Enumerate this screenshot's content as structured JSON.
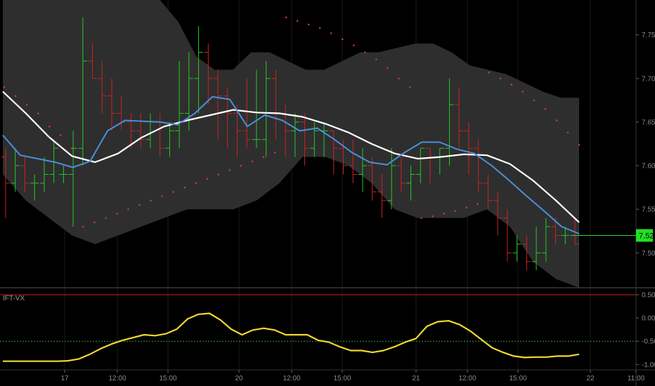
{
  "chart_data": [
    {
      "type": "line",
      "title": "",
      "price_scale": {
        "ylim": [
          7.46,
          7.79
        ],
        "ticks": [
          "7.75",
          "7.70",
          "7.65",
          "7.60",
          "7.55",
          "7.50"
        ]
      },
      "last_price": {
        "label": "7.52",
        "value": 7.52,
        "color": "#22e022"
      },
      "colors": {
        "up": "#22cc22",
        "down": "#cc2222",
        "band": "#2e2e2e",
        "fast_ma": "#4a90d9",
        "slow_ma": "#ffffff",
        "psar": "#d63a3a"
      },
      "price_bars": [
        [
          7.61,
          7.62,
          7.54,
          7.58
        ],
        [
          7.58,
          7.62,
          7.57,
          7.6
        ],
        [
          7.6,
          7.61,
          7.57,
          7.58
        ],
        [
          7.58,
          7.59,
          7.56,
          7.58
        ],
        [
          7.58,
          7.61,
          7.57,
          7.59
        ],
        [
          7.59,
          7.63,
          7.58,
          7.62
        ],
        [
          7.59,
          7.6,
          7.58,
          7.59
        ],
        [
          7.59,
          7.64,
          7.53,
          7.62
        ],
        [
          7.62,
          7.77,
          7.6,
          7.72
        ],
        [
          7.72,
          7.74,
          7.7,
          7.7
        ],
        [
          7.7,
          7.72,
          7.66,
          7.68
        ],
        [
          7.68,
          7.7,
          7.64,
          7.66
        ],
        [
          7.66,
          7.68,
          7.64,
          7.65
        ],
        [
          7.65,
          7.66,
          7.62,
          7.64
        ],
        [
          7.64,
          7.66,
          7.62,
          7.63
        ],
        [
          7.63,
          7.66,
          7.62,
          7.65
        ],
        [
          7.65,
          7.66,
          7.61,
          7.62
        ],
        [
          7.62,
          7.65,
          7.61,
          7.64
        ],
        [
          7.64,
          7.72,
          7.62,
          7.66
        ],
        [
          7.66,
          7.73,
          7.64,
          7.7
        ],
        [
          7.7,
          7.76,
          7.66,
          7.73
        ],
        [
          7.73,
          7.74,
          7.67,
          7.7
        ],
        [
          7.7,
          7.71,
          7.63,
          7.68
        ],
        [
          7.68,
          7.69,
          7.62,
          7.66
        ],
        [
          7.66,
          7.67,
          7.61,
          7.64
        ],
        [
          7.64,
          7.7,
          7.62,
          7.63
        ],
        [
          7.63,
          7.71,
          7.62,
          7.63
        ],
        [
          7.63,
          7.72,
          7.61,
          7.7
        ],
        [
          7.7,
          7.71,
          7.63,
          7.66
        ],
        [
          7.66,
          7.67,
          7.61,
          7.64
        ],
        [
          7.64,
          7.66,
          7.61,
          7.65
        ],
        [
          7.65,
          7.66,
          7.6,
          7.62
        ],
        [
          7.62,
          7.65,
          7.61,
          7.64
        ],
        [
          7.64,
          7.65,
          7.61,
          7.64
        ],
        [
          7.64,
          7.64,
          7.59,
          7.62
        ],
        [
          7.62,
          7.63,
          7.59,
          7.6
        ],
        [
          7.6,
          7.63,
          7.58,
          7.59
        ],
        [
          7.59,
          7.62,
          7.57,
          7.6
        ],
        [
          7.6,
          7.61,
          7.56,
          7.57
        ],
        [
          7.57,
          7.59,
          7.54,
          7.56
        ],
        [
          7.56,
          7.62,
          7.55,
          7.6
        ],
        [
          7.6,
          7.61,
          7.57,
          7.58
        ],
        [
          7.58,
          7.6,
          7.56,
          7.59
        ],
        [
          7.59,
          7.62,
          7.58,
          7.62
        ],
        [
          7.62,
          7.62,
          7.58,
          7.61
        ],
        [
          7.61,
          7.62,
          7.59,
          7.62
        ],
        [
          7.62,
          7.7,
          7.6,
          7.67
        ],
        [
          7.67,
          7.69,
          7.62,
          7.64
        ],
        [
          7.64,
          7.65,
          7.59,
          7.62
        ],
        [
          7.62,
          7.63,
          7.57,
          7.58
        ],
        [
          7.58,
          7.59,
          7.55,
          7.56
        ],
        [
          7.56,
          7.57,
          7.52,
          7.54
        ],
        [
          7.54,
          7.55,
          7.49,
          7.5
        ],
        [
          7.5,
          7.52,
          7.49,
          7.51
        ],
        [
          7.51,
          7.52,
          7.48,
          7.49
        ],
        [
          7.49,
          7.53,
          7.48,
          7.5
        ],
        [
          7.5,
          7.54,
          7.49,
          7.53
        ],
        [
          7.53,
          7.54,
          7.51,
          7.52
        ],
        [
          7.52,
          7.53,
          7.51,
          7.52
        ],
        [
          7.52,
          7.54,
          7.51,
          7.51
        ]
      ],
      "fast_ma": [
        7.635,
        7.612,
        7.608,
        7.604,
        7.598,
        7.605,
        7.64,
        7.652,
        7.651,
        7.65,
        7.647,
        7.66,
        7.679,
        7.676,
        7.645,
        7.658,
        7.652,
        7.64,
        7.643,
        7.63,
        7.615,
        7.604,
        7.601,
        7.615,
        7.627,
        7.627,
        7.619,
        7.614,
        7.6,
        7.583,
        7.565,
        7.548,
        7.53,
        7.522
      ],
      "slow_ma": [
        7.685,
        7.66,
        7.633,
        7.611,
        7.604,
        7.614,
        7.632,
        7.645,
        7.652,
        7.658,
        7.664,
        7.661,
        7.66,
        7.656,
        7.648,
        7.638,
        7.625,
        7.614,
        7.608,
        7.61,
        7.613,
        7.612,
        7.602,
        7.583,
        7.56,
        7.535
      ],
      "band_upper": [
        7.79,
        7.79,
        7.79,
        7.79,
        7.79,
        7.765,
        7.725,
        7.71,
        7.71,
        7.73,
        7.73,
        7.72,
        7.71,
        7.71,
        7.72,
        7.73,
        7.73,
        7.735,
        7.74,
        7.74,
        7.73,
        7.715,
        7.71,
        7.705,
        7.695,
        7.685,
        7.678,
        7.678
      ],
      "band_lower": [
        7.59,
        7.56,
        7.54,
        7.52,
        7.51,
        7.52,
        7.53,
        7.54,
        7.55,
        7.55,
        7.55,
        7.56,
        7.58,
        7.61,
        7.61,
        7.6,
        7.58,
        7.55,
        7.54,
        7.54,
        7.54,
        7.55,
        7.53,
        7.49,
        7.47,
        7.46
      ],
      "psar": [
        7.69,
        7.68,
        7.67,
        7.66,
        7.645,
        7.635,
        7.62,
        7.53,
        7.535,
        7.54,
        7.545,
        7.55,
        7.555,
        7.56,
        7.565,
        7.57,
        7.575,
        7.58,
        7.585,
        7.59,
        7.595,
        7.6,
        7.605,
        7.61,
        7.615,
        7.77,
        7.766,
        7.762,
        7.758,
        7.752,
        7.745,
        7.738,
        7.73,
        7.722,
        7.712,
        7.7,
        7.69,
        7.54,
        7.542,
        7.545,
        7.548,
        7.552,
        7.556,
        7.707,
        7.7,
        7.693,
        7.685,
        7.675,
        7.665,
        7.652,
        7.638,
        7.624
      ],
      "time_axis": {
        "ticks": [
          "17",
          "12:00",
          "15:00",
          "20",
          "12:00",
          "15:00",
          "21",
          "12:00",
          "15:00",
          "22",
          "11:00"
        ]
      }
    },
    {
      "type": "line",
      "title": "IFT-VX",
      "ylim": [
        -1.1,
        0.62
      ],
      "y_ticks": [
        "0.50",
        "0.00",
        "-0.50",
        "-1.00"
      ],
      "reference_lines": [
        {
          "value": 0.5,
          "color": "#cc2222"
        },
        {
          "value": -0.5,
          "color": "#3a9a3a"
        }
      ],
      "series": [
        {
          "color": "#f0d830",
          "values": [
            -0.93,
            -0.93,
            -0.93,
            -0.93,
            -0.93,
            -0.93,
            -0.92,
            -0.88,
            -0.78,
            -0.66,
            -0.56,
            -0.48,
            -0.42,
            -0.36,
            -0.38,
            -0.34,
            -0.24,
            -0.02,
            0.08,
            0.1,
            -0.04,
            -0.24,
            -0.36,
            -0.26,
            -0.22,
            -0.26,
            -0.36,
            -0.36,
            -0.36,
            -0.48,
            -0.52,
            -0.62,
            -0.7,
            -0.7,
            -0.74,
            -0.7,
            -0.62,
            -0.52,
            -0.44,
            -0.18,
            -0.08,
            -0.06,
            -0.14,
            -0.28,
            -0.46,
            -0.64,
            -0.74,
            -0.82,
            -0.85,
            -0.84,
            -0.84,
            -0.82,
            -0.82,
            -0.78
          ]
        }
      ]
    }
  ]
}
